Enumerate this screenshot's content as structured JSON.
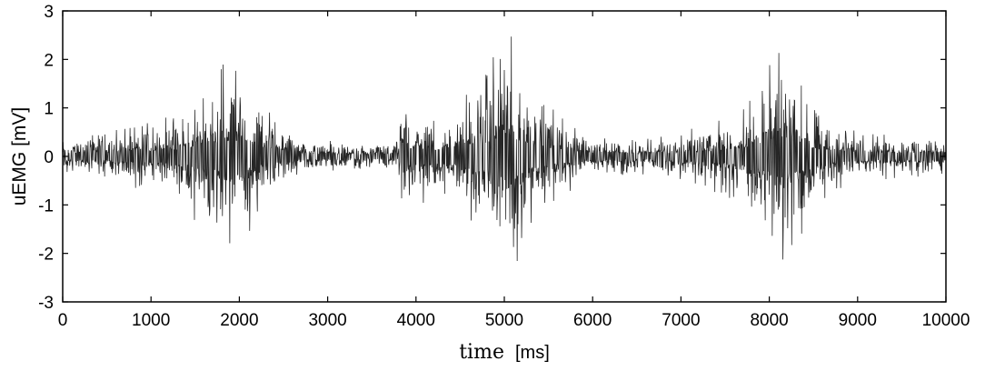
{
  "chart_data": {
    "type": "line",
    "title": "",
    "xlabel": "time",
    "xlabel_unit": "[ms]",
    "ylabel": "uEMG [mV]",
    "xlim": [
      0,
      10000
    ],
    "ylim": [
      -3,
      3
    ],
    "x_ticks": [
      0,
      1000,
      2000,
      3000,
      4000,
      5000,
      6000,
      7000,
      8000,
      9000,
      10000
    ],
    "y_ticks": [
      3,
      2,
      1,
      0,
      -1,
      -2,
      -3
    ],
    "grid": false,
    "legend": "none",
    "series": [
      {
        "color": "#000000",
        "envelope": [
          {
            "t": 0,
            "amp": 0.35
          },
          {
            "t": 600,
            "amp": 0.55
          },
          {
            "t": 1300,
            "amp": 0.9
          },
          {
            "t": 1700,
            "amp": 1.8
          },
          {
            "t": 1950,
            "amp": 2.05
          },
          {
            "t": 2300,
            "amp": 1.0
          },
          {
            "t": 2700,
            "amp": 0.4
          },
          {
            "t": 3400,
            "amp": 0.25
          },
          {
            "t": 3800,
            "amp": 0.35
          },
          {
            "t": 3850,
            "amp": 1.2
          },
          {
            "t": 4300,
            "amp": 0.8
          },
          {
            "t": 4700,
            "amp": 1.5
          },
          {
            "t": 5050,
            "amp": 2.65
          },
          {
            "t": 5350,
            "amp": 1.3
          },
          {
            "t": 5900,
            "amp": 0.5
          },
          {
            "t": 6500,
            "amp": 0.35
          },
          {
            "t": 7000,
            "amp": 0.5
          },
          {
            "t": 7600,
            "amp": 0.9
          },
          {
            "t": 8000,
            "amp": 1.9
          },
          {
            "t": 8200,
            "amp": 2.4
          },
          {
            "t": 8500,
            "amp": 1.0
          },
          {
            "t": 9000,
            "amp": 0.5
          },
          {
            "t": 10000,
            "amp": 0.45
          }
        ]
      }
    ]
  }
}
